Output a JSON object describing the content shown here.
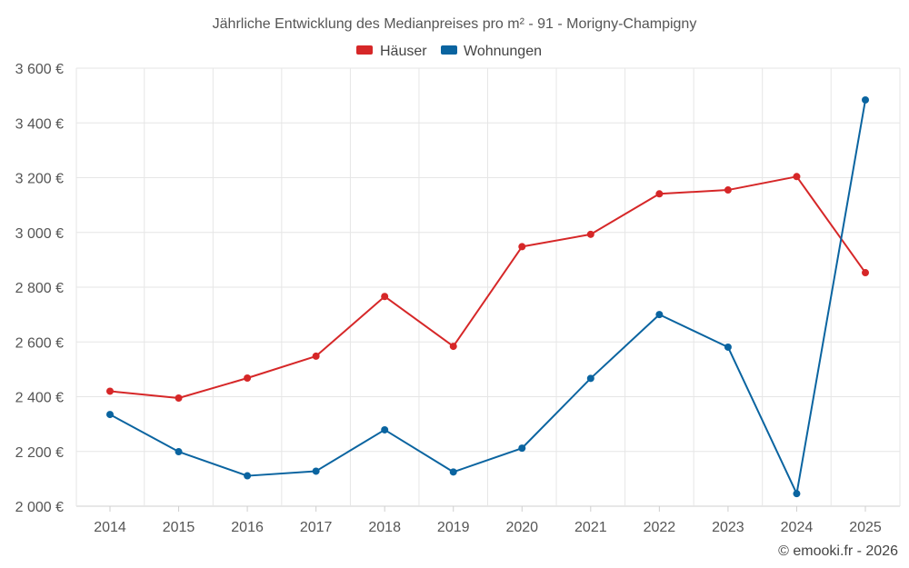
{
  "chart_data": {
    "type": "line",
    "title": "Jährliche Entwicklung des Medianpreises pro m² - 91 - Morigny-Champigny",
    "categories": [
      "2014",
      "2015",
      "2016",
      "2017",
      "2018",
      "2019",
      "2020",
      "2021",
      "2022",
      "2023",
      "2024",
      "2025"
    ],
    "series": [
      {
        "name": "Häuser",
        "color": "#d62728",
        "values": [
          2420,
          2395,
          2468,
          2548,
          2766,
          2584,
          2948,
          2993,
          3141,
          3155,
          3204,
          2853
        ]
      },
      {
        "name": "Wohnungen",
        "color": "#0a64a0",
        "values": [
          2335,
          2199,
          2111,
          2128,
          2279,
          2125,
          2212,
          2467,
          2700,
          2581,
          2046,
          3484
        ]
      }
    ],
    "ylim": [
      2000,
      3600
    ],
    "yticks": [
      2000,
      2200,
      2400,
      2600,
      2800,
      3000,
      3200,
      3400,
      3600
    ],
    "ytick_labels": [
      "2 000 €",
      "2 200 €",
      "2 400 €",
      "2 600 €",
      "2 800 €",
      "3 000 €",
      "3 200 €",
      "3 400 €",
      "3 600 €"
    ],
    "xlabel": "",
    "ylabel": "",
    "grid": true,
    "legend": "top-center"
  },
  "credit": "© emooki.fr - 2026"
}
